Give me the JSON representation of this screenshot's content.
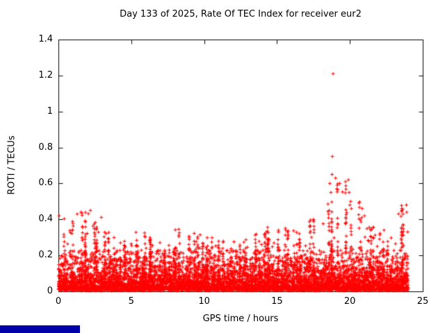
{
  "chart_data": {
    "type": "scatter",
    "title": "Day 133 of 2025, Rate Of TEC Index for receiver eur2",
    "xlabel": "GPS time / hours",
    "ylabel": "ROTI / TECUs",
    "xlim": [
      0,
      25
    ],
    "ylim": [
      0,
      1.4
    ],
    "x_ticks": [
      0,
      5,
      10,
      15,
      20,
      25
    ],
    "y_ticks": [
      0,
      0.2,
      0.4,
      0.6,
      0.8,
      1,
      1.2,
      1.4
    ],
    "grid": false,
    "legend": null,
    "marker": "plus",
    "marker_color": "#ff0000",
    "axis_color": "#000000",
    "data_span_hours": [
      0,
      24
    ],
    "seed": 133,
    "points_per_hour": 260,
    "envelope_per_hour": [
      0.42,
      0.44,
      0.45,
      0.33,
      0.28,
      0.33,
      0.3,
      0.26,
      0.35,
      0.33,
      0.3,
      0.28,
      0.3,
      0.33,
      0.36,
      0.36,
      0.35,
      0.4,
      0.5,
      0.63,
      0.5,
      0.36,
      0.35,
      0.48
    ],
    "outliers": [
      [
        18.85,
        1.21
      ],
      [
        18.8,
        0.75
      ],
      [
        18.78,
        0.65
      ],
      [
        18.62,
        0.6
      ],
      [
        19.02,
        0.63
      ],
      [
        19.3,
        0.6
      ],
      [
        19.9,
        0.62
      ],
      [
        19.95,
        0.55
      ],
      [
        20.05,
        0.5
      ],
      [
        20.1,
        0.46
      ],
      [
        23.88,
        0.48
      ],
      [
        23.9,
        0.44
      ],
      [
        0.05,
        0.42
      ],
      [
        2.2,
        0.45
      ],
      [
        1.55,
        0.44
      ],
      [
        21.0,
        0.42
      ],
      [
        17.5,
        0.4
      ],
      [
        19.1,
        0.57
      ],
      [
        18.7,
        0.55
      ],
      [
        20.0,
        0.48
      ]
    ]
  },
  "footer": {
    "bar_color": "#0000aa"
  }
}
